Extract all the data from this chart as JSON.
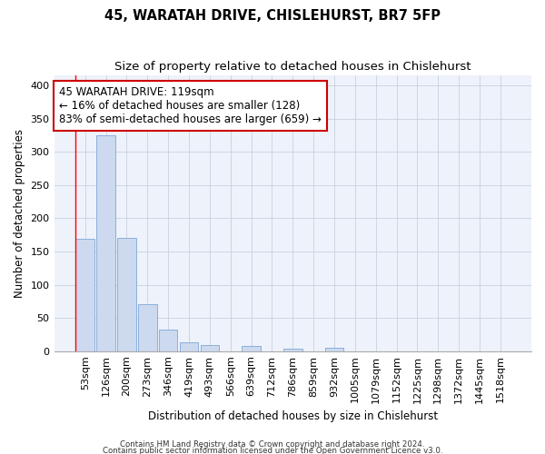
{
  "title": "45, WARATAH DRIVE, CHISLEHURST, BR7 5FP",
  "subtitle": "Size of property relative to detached houses in Chislehurst",
  "xlabel": "Distribution of detached houses by size in Chislehurst",
  "ylabel": "Number of detached properties",
  "footnote1": "Contains HM Land Registry data © Crown copyright and database right 2024.",
  "footnote2": "Contains public sector information licensed under the Open Government Licence v3.0.",
  "categories": [
    "53sqm",
    "126sqm",
    "200sqm",
    "273sqm",
    "346sqm",
    "419sqm",
    "493sqm",
    "566sqm",
    "639sqm",
    "712sqm",
    "786sqm",
    "859sqm",
    "932sqm",
    "1005sqm",
    "1079sqm",
    "1152sqm",
    "1225sqm",
    "1298sqm",
    "1372sqm",
    "1445sqm",
    "1518sqm"
  ],
  "values": [
    169,
    325,
    171,
    70,
    33,
    13,
    9,
    0,
    8,
    0,
    4,
    0,
    5,
    0,
    0,
    0,
    0,
    0,
    0,
    0,
    0
  ],
  "bar_color": "#ccd9ee",
  "bar_edge_color": "#7da8d8",
  "grid_color": "#c8d0e0",
  "background_color": "#eef2fa",
  "red_line_x": 0.0,
  "annotation_text": "45 WARATAH DRIVE: 119sqm\n← 16% of detached houses are smaller (128)\n83% of semi-detached houses are larger (659) →",
  "annotation_box_color": "#ffffff",
  "annotation_box_edge": "#cc0000",
  "ylim": [
    0,
    415
  ],
  "yticks": [
    0,
    50,
    100,
    150,
    200,
    250,
    300,
    350,
    400
  ],
  "title_fontsize": 10.5,
  "subtitle_fontsize": 9.5,
  "xlabel_fontsize": 8.5,
  "ylabel_fontsize": 8.5,
  "tick_fontsize": 8,
  "annot_fontsize": 8.5,
  "footnote_fontsize": 6.2
}
